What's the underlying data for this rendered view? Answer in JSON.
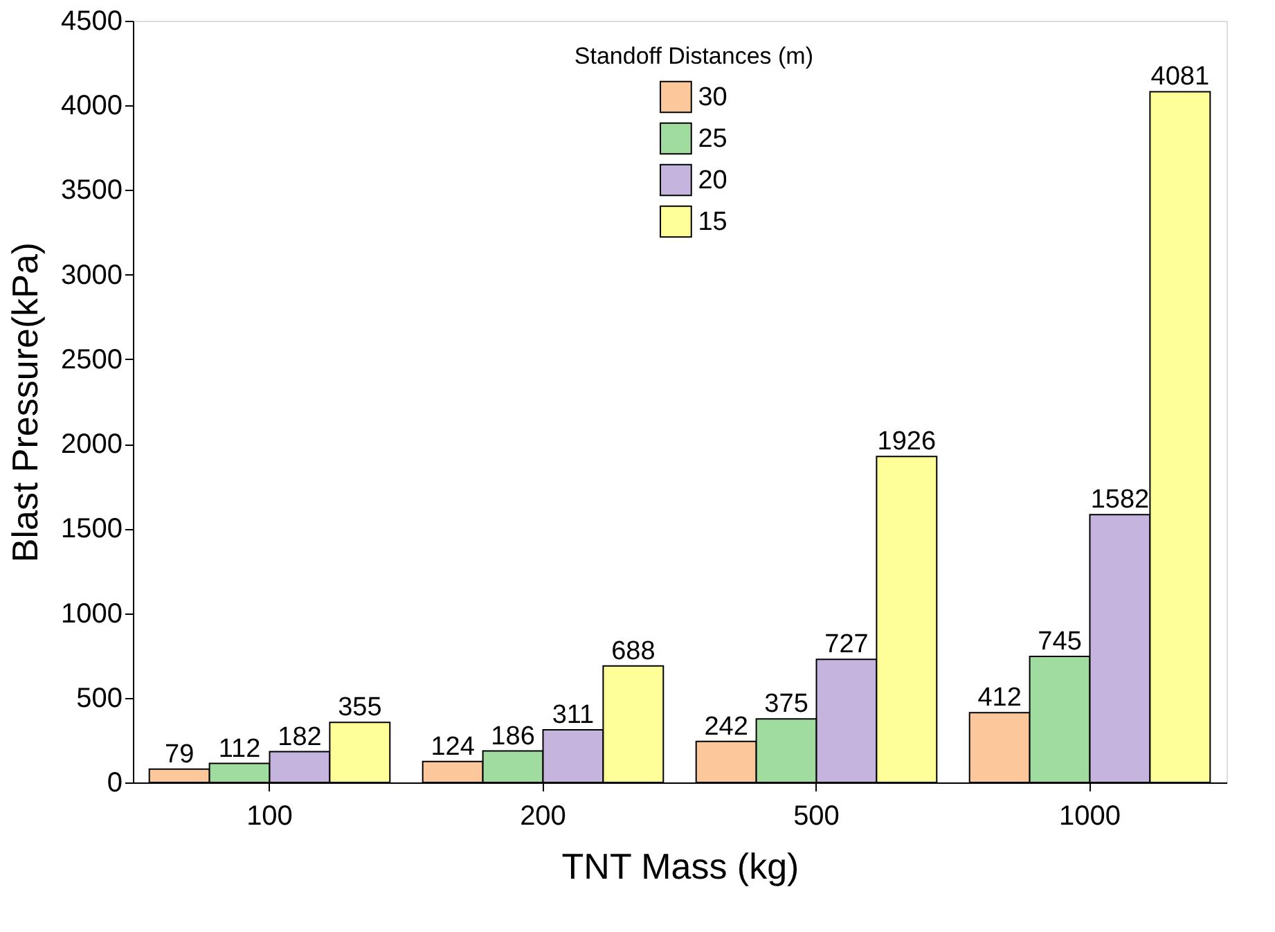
{
  "chart_data": {
    "type": "bar",
    "xlabel": "TNT Mass (kg)",
    "ylabel": "Blast Pressure(kPa)",
    "legend_title": "Standoff Distances (m)",
    "categories": [
      "100",
      "200",
      "500",
      "1000"
    ],
    "series": [
      {
        "name": "30",
        "color": "#fcc89b",
        "values": [
          79,
          124,
          242,
          412
        ]
      },
      {
        "name": "25",
        "color": "#a0dba0",
        "values": [
          112,
          186,
          375,
          745
        ]
      },
      {
        "name": "20",
        "color": "#c4b4de",
        "values": [
          182,
          311,
          727,
          1582
        ]
      },
      {
        "name": "15",
        "color": "#ffff99",
        "values": [
          355,
          688,
          1926,
          4081
        ]
      }
    ],
    "ylim": [
      0,
      4500
    ],
    "yticks": [
      0,
      500,
      1000,
      1500,
      2000,
      2500,
      3000,
      3500,
      4000,
      4500
    ],
    "data_labels": true,
    "grid": false,
    "legend": "top"
  }
}
